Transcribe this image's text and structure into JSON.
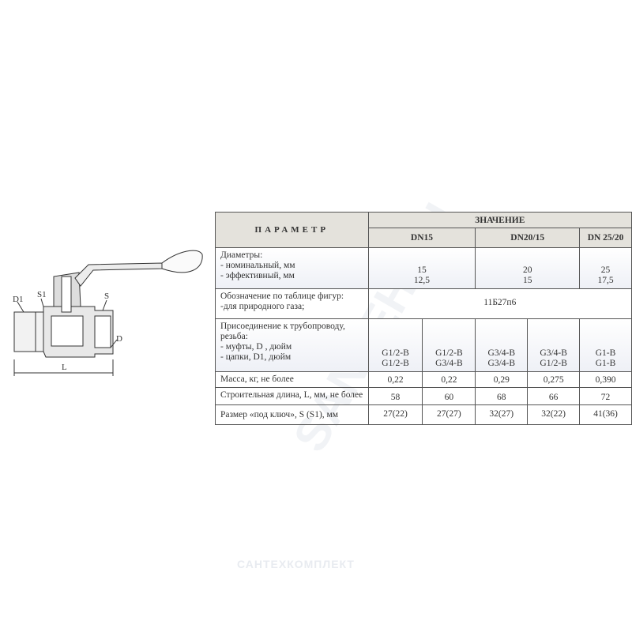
{
  "drawing": {
    "labels": {
      "d1": "D1",
      "s1": "S1",
      "s": "S",
      "d": "D",
      "l": "L"
    }
  },
  "table": {
    "header": {
      "param": "ПАРАМЕТР",
      "value": "ЗНАЧЕНИЕ",
      "dn": [
        "DN15",
        "DN20/15",
        "DN 25/20"
      ]
    },
    "diameters": {
      "label": [
        "Диаметры:",
        "- номинальный, мм",
        " - эффективный, мм"
      ],
      "values": [
        [
          "15",
          "12,5"
        ],
        [
          "20",
          "15"
        ],
        [
          "25",
          "17,5"
        ]
      ]
    },
    "designation": {
      "label": [
        "Обозначение по таблице фигур:",
        "-для природного газа;"
      ],
      "value": "11Б27п6"
    },
    "connection": {
      "label": [
        "Присоединение к трубопроводу,",
        " резьба:",
        "- муфты, D ,   дюйм",
        "- цапки,   D1,  дюйм"
      ],
      "values": [
        [
          "G1/2-B",
          "G1/2-B"
        ],
        [
          "G1/2-B",
          "G3/4-B"
        ],
        [
          "G3/4-B",
          "G3/4-B"
        ],
        [
          "G3/4-B",
          "G1/2-B"
        ],
        [
          "G1-B",
          "G1-B"
        ]
      ]
    },
    "mass": {
      "label": "Масса,  кг,  не более",
      "values": [
        "0,22",
        "0,22",
        "0,29",
        "0,275",
        "0,390"
      ]
    },
    "length": {
      "label": "Строительная длина, L, мм, не более",
      "values": [
        "58",
        "60",
        "68",
        "66",
        "72"
      ]
    },
    "wrench": {
      "label": "Размер «под ключ», S (S1), мм",
      "values": [
        "27(22)",
        "27(27)",
        "32(27)",
        "32(22)",
        "41(36)"
      ]
    }
  },
  "watermarks": {
    "diagonal": "SANTEH.RU",
    "bottom": "САНТЕХКОМПЛЕКТ"
  }
}
